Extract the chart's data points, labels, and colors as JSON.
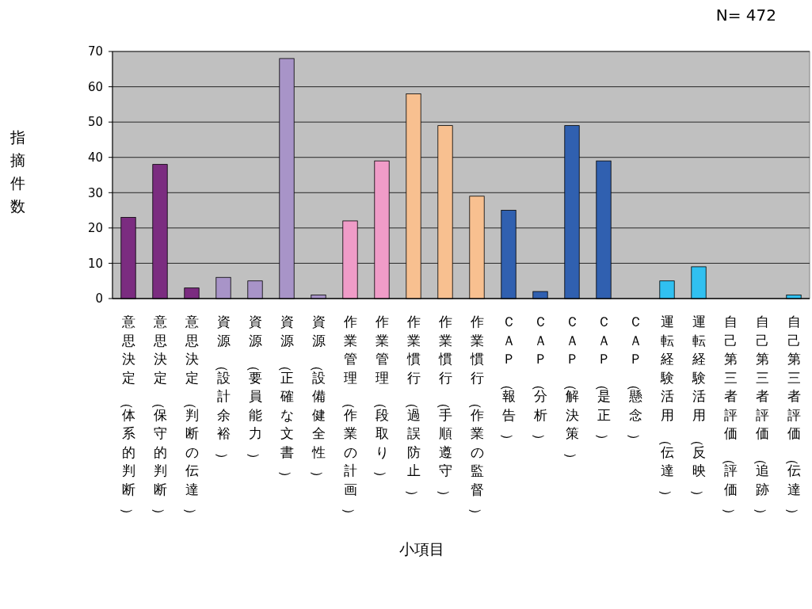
{
  "chart_data": {
    "type": "bar",
    "xlabel": "小項目",
    "ylabel": "指摘件数",
    "annotations": [
      "N= 472"
    ],
    "categories": [
      "意思決定（体系的判断）",
      "意思決定（保守的判断）",
      "意思決定（判断の伝達）",
      "資源（設計余裕）",
      "資源（要員能力）",
      "資源（正確な文書）",
      "資源（設備健全性）",
      "作業管理（作業の計画）",
      "作業管理（段取り）",
      "作業慣行（過誤防止）",
      "作業慣行（手順遵守）",
      "作業慣行（作業の監督）",
      "ＣＡＰ（報告）",
      "ＣＡＰ（分析）",
      "ＣＡＰ（解決策）",
      "ＣＡＰ（是正）",
      "ＣＡＰ（懸念）",
      "運転経験活用（伝達）",
      "運転経験活用（反映）",
      "自己第三者評価（評価）",
      "自己第三者評価（追跡）",
      "自己第三者評価（伝達）"
    ],
    "values": [
      23,
      38,
      3,
      6,
      5,
      68,
      1,
      22,
      39,
      58,
      49,
      29,
      25,
      2,
      49,
      39,
      0,
      5,
      9,
      0,
      0,
      1
    ],
    "colors": [
      "#7b2c80",
      "#7b2c80",
      "#7b2c80",
      "#a894c8",
      "#a894c8",
      "#a894c8",
      "#a894c8",
      "#f09cc8",
      "#f09cc8",
      "#f8c090",
      "#f8c090",
      "#f8c090",
      "#3060b0",
      "#3060b0",
      "#3060b0",
      "#3060b0",
      "#3060b0",
      "#30c0f0",
      "#30c0f0",
      "#30c0f0",
      "#30c0f0",
      "#30c0f0"
    ],
    "ylim": [
      0,
      70
    ],
    "yticks": [
      0,
      10,
      20,
      30,
      40,
      50,
      60,
      70
    ],
    "grid": "y"
  }
}
